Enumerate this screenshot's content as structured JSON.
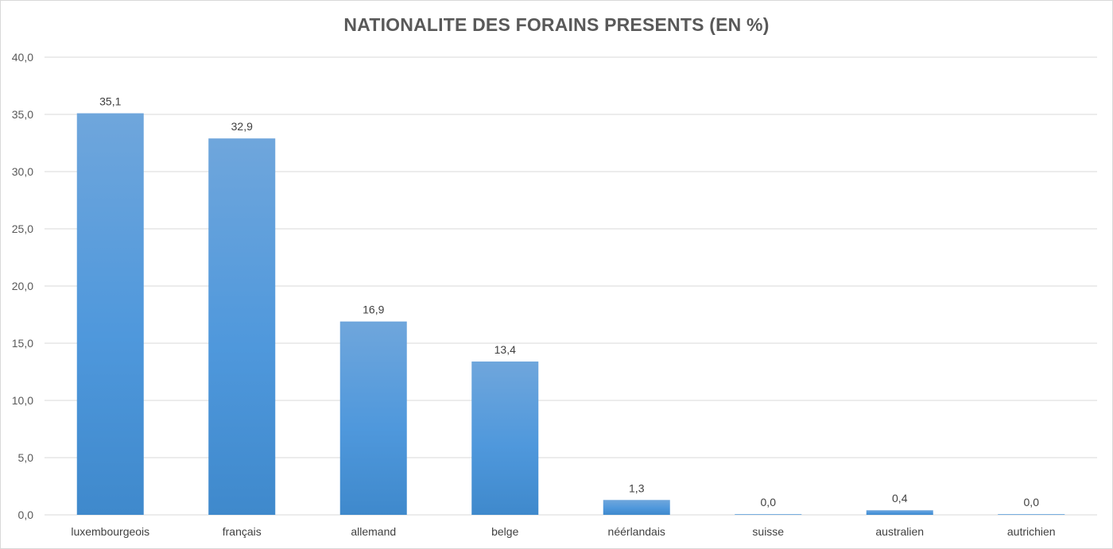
{
  "chart_data": {
    "type": "bar",
    "title": "NATIONALITE DES FORAINS PRESENTS (EN %)",
    "xlabel": "",
    "ylabel": "",
    "categories": [
      "luxembourgeois",
      "français",
      "allemand",
      "belge",
      "néérlandais",
      "suisse",
      "australien",
      "autrichien"
    ],
    "values": [
      35.1,
      32.9,
      16.9,
      13.4,
      1.3,
      0.0,
      0.4,
      0.0
    ],
    "data_labels": [
      "35,1",
      "32,9",
      "16,9",
      "13,4",
      "1,3",
      "0,0",
      "0,4",
      "0,0"
    ],
    "yticks": [
      0,
      5,
      10,
      15,
      20,
      25,
      30,
      35,
      40
    ],
    "ytick_labels": [
      "0,0",
      "5,0",
      "10,0",
      "15,0",
      "20,0",
      "25,0",
      "30,0",
      "35,0",
      "40,0"
    ],
    "ylim": [
      0,
      40
    ],
    "grid": true,
    "legend": "none",
    "colors": {
      "bar_top": "#6fa6dc",
      "bar_bottom": "#3f89cc",
      "grid": "#d9d9d9",
      "axis": "#d9d9d9"
    }
  }
}
